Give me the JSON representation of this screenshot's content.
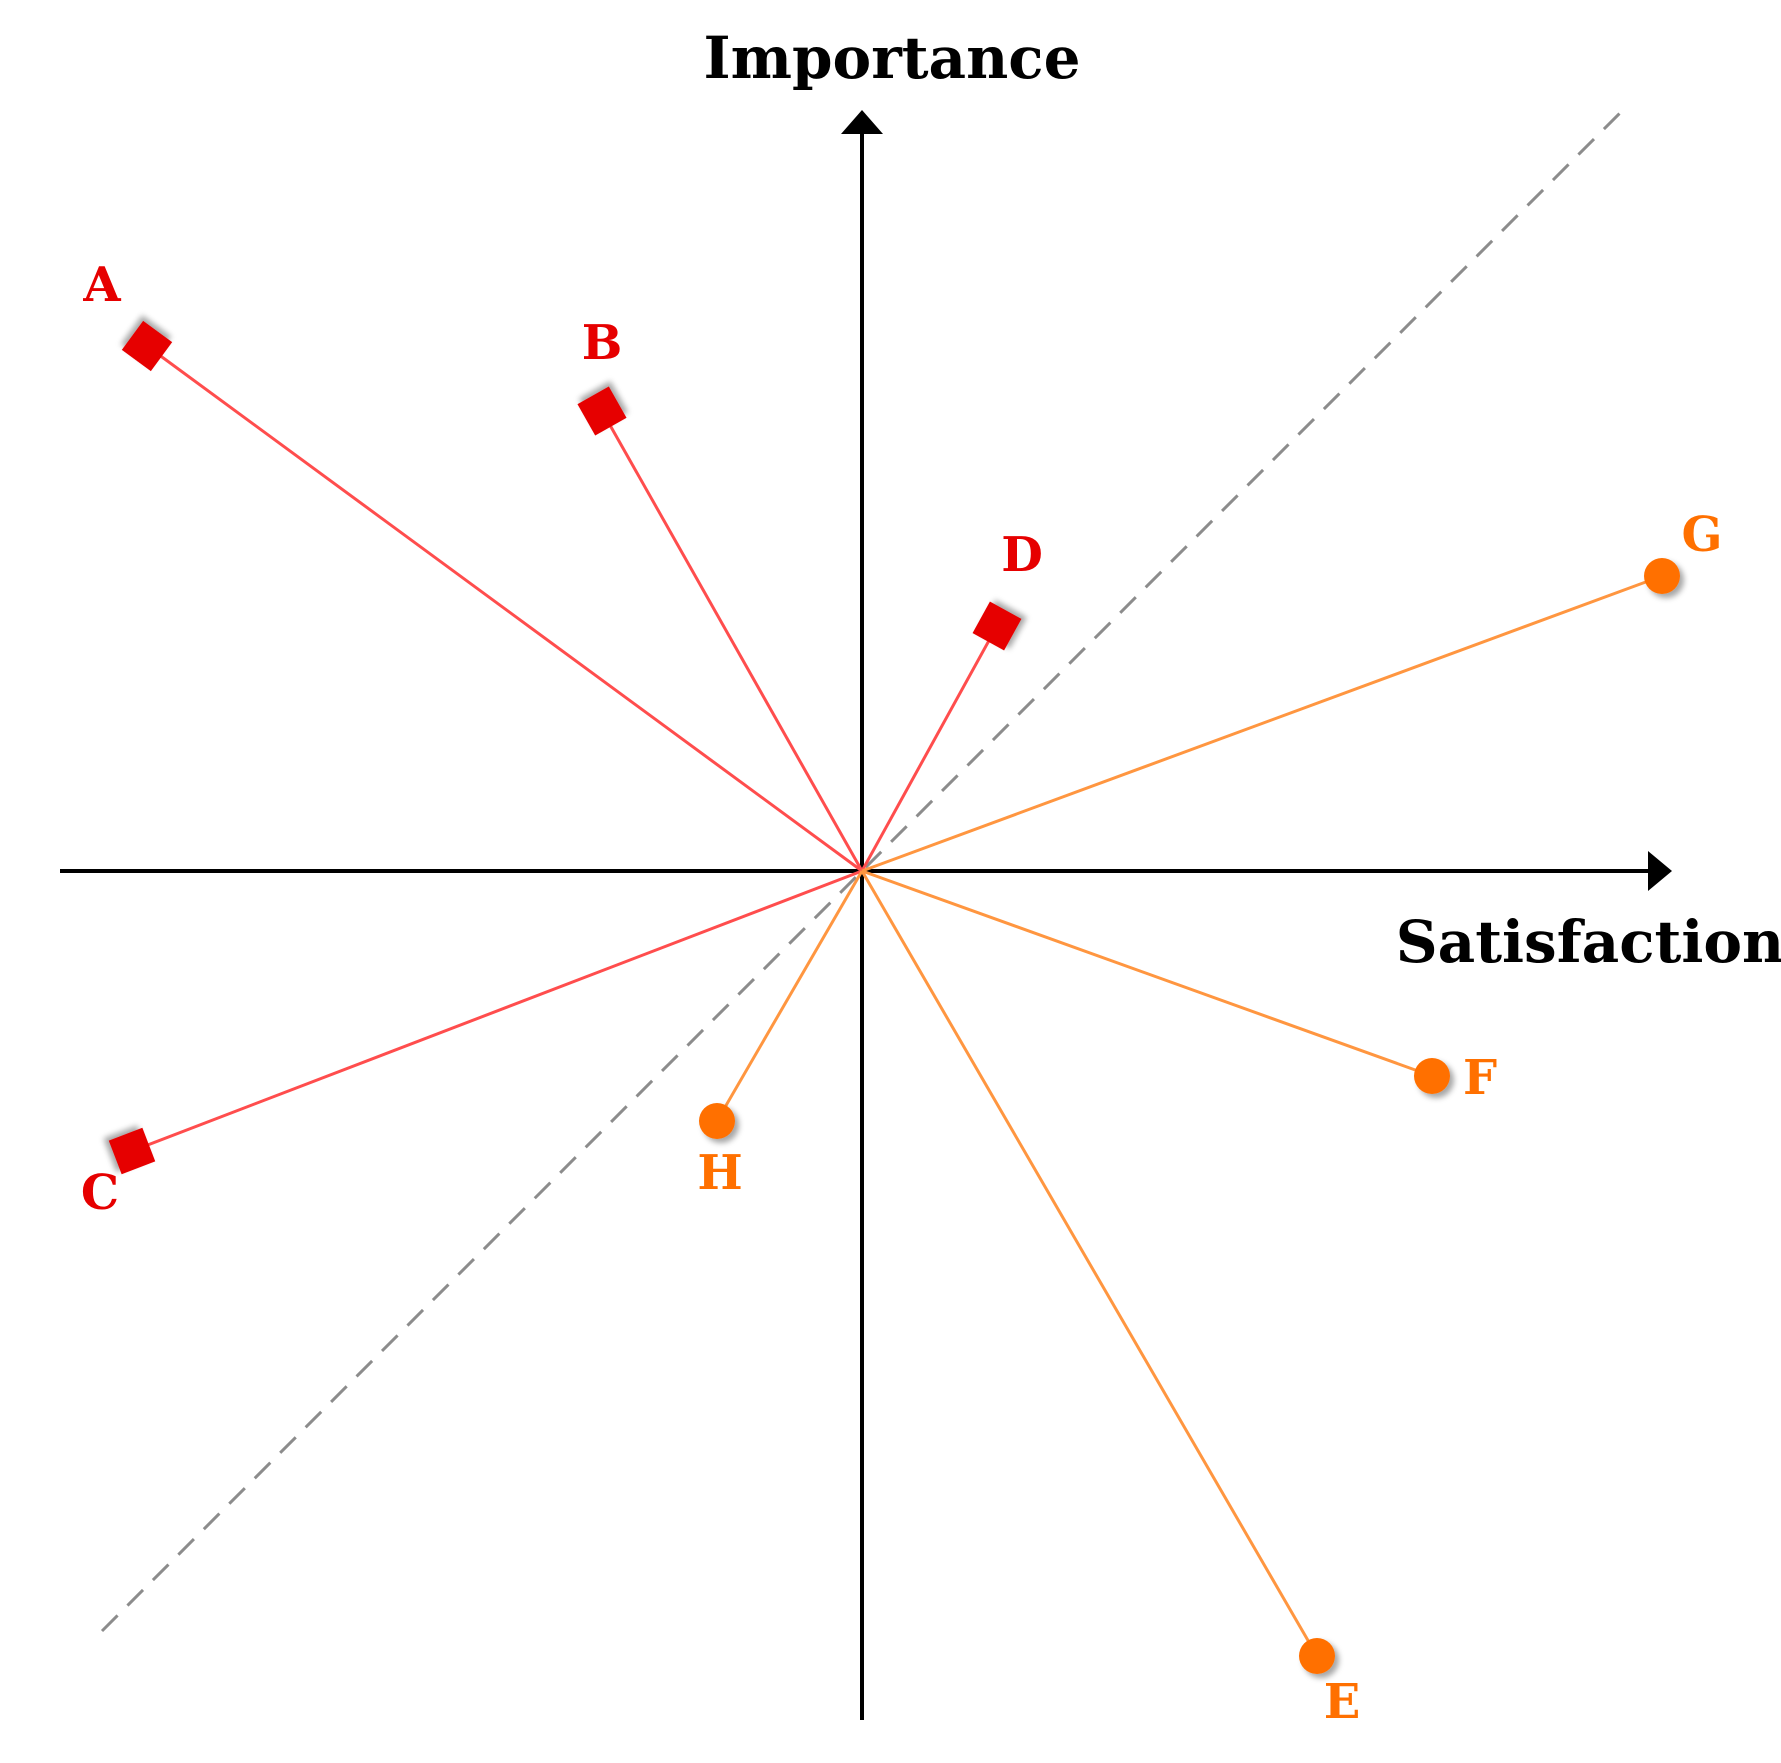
{
  "axes": {
    "x_label": "Satisfaction",
    "y_label": "Importance",
    "color": "#000000"
  },
  "reference_line": {
    "description": "dashed diagonal",
    "color": "#8c8c8c"
  },
  "colors": {
    "square_series": "#e60000",
    "square_line": "#ff4d4d",
    "circle_series": "#ff7000",
    "circle_line": "#ff9640"
  },
  "points": [
    {
      "label": "A",
      "marker": "square",
      "x": -7.15,
      "y": 5.25
    },
    {
      "label": "B",
      "marker": "square",
      "x": -2.6,
      "y": 4.6
    },
    {
      "label": "C",
      "marker": "square",
      "x": -7.3,
      "y": -2.8
    },
    {
      "label": "D",
      "marker": "square",
      "x": 1.35,
      "y": 2.45
    },
    {
      "label": "E",
      "marker": "circle",
      "x": 4.55,
      "y": -7.85
    },
    {
      "label": "F",
      "marker": "circle",
      "x": 5.7,
      "y": -2.05
    },
    {
      "label": "G",
      "marker": "circle",
      "x": 8.0,
      "y": 2.95
    },
    {
      "label": "H",
      "marker": "circle",
      "x": -1.45,
      "y": -2.5
    }
  ]
}
